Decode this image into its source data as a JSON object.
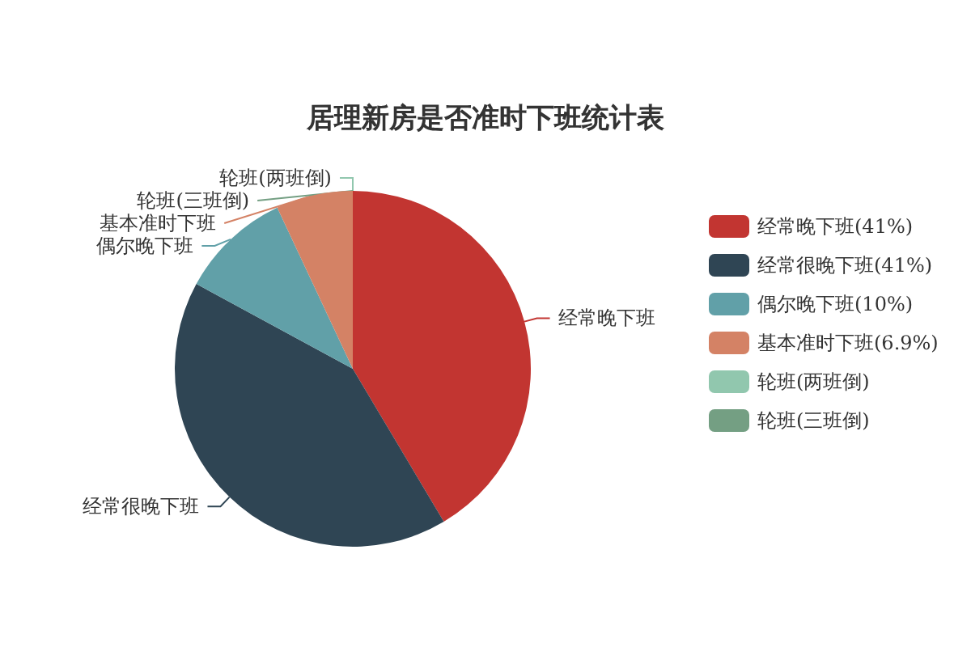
{
  "chart_data": {
    "type": "pie",
    "title": "居理新房是否准时下班统计表",
    "categories": [
      "经常晚下班",
      "经常很晚下班",
      "偶尔晚下班",
      "基本准时下班",
      "轮班(两班倒)",
      "轮班(三班倒)"
    ],
    "values": [
      41,
      41,
      10,
      6.9,
      0,
      0
    ],
    "value_labels": [
      "(41%)",
      "(41%)",
      "(10%)",
      "(6.9%)",
      null,
      null
    ],
    "colors": [
      "#c23531",
      "#2f4554",
      "#61a0a8",
      "#d48265",
      "#91c7ae",
      "#749f83"
    ],
    "legend": "right"
  }
}
